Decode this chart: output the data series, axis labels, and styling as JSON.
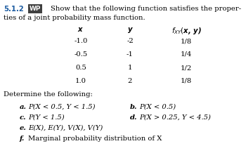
{
  "title_number": "5.1.2",
  "wp_label": "WP",
  "title_line1": "Show that the following function satisfies the proper-",
  "title_line2": "ties of a joint probability mass function.",
  "col_headers": [
    "x",
    "y",
    "f_{XY}(x, y)"
  ],
  "table_data": [
    [
      "-1.0",
      "-2",
      "1/8"
    ],
    [
      "-0.5",
      "-1",
      "1/4"
    ],
    [
      "0.5",
      "1",
      "1/2"
    ],
    [
      "1.0",
      "2",
      "1/8"
    ]
  ],
  "determine_text": "Determine the following:",
  "items_left_label": [
    "a.",
    "c.",
    "e.",
    "f."
  ],
  "items_left_text": [
    "P(X < 0.5, Y < 1.5)",
    "P(Y < 1.5)",
    "E(X), E(Y), V(X), V(Y)",
    "Marginal probability distribution of X"
  ],
  "items_right_label": [
    "b.",
    "d."
  ],
  "items_right_text": [
    "P(X < 0.5)",
    "P(X > 0.25, Y < 4.5)"
  ],
  "items_e_italic": [
    true,
    true,
    true,
    false
  ],
  "bg_color": "#ffffff",
  "text_color": "#000000",
  "number_color": "#1a5aa0",
  "wp_bg": "#404040",
  "wp_text": "#ffffff"
}
